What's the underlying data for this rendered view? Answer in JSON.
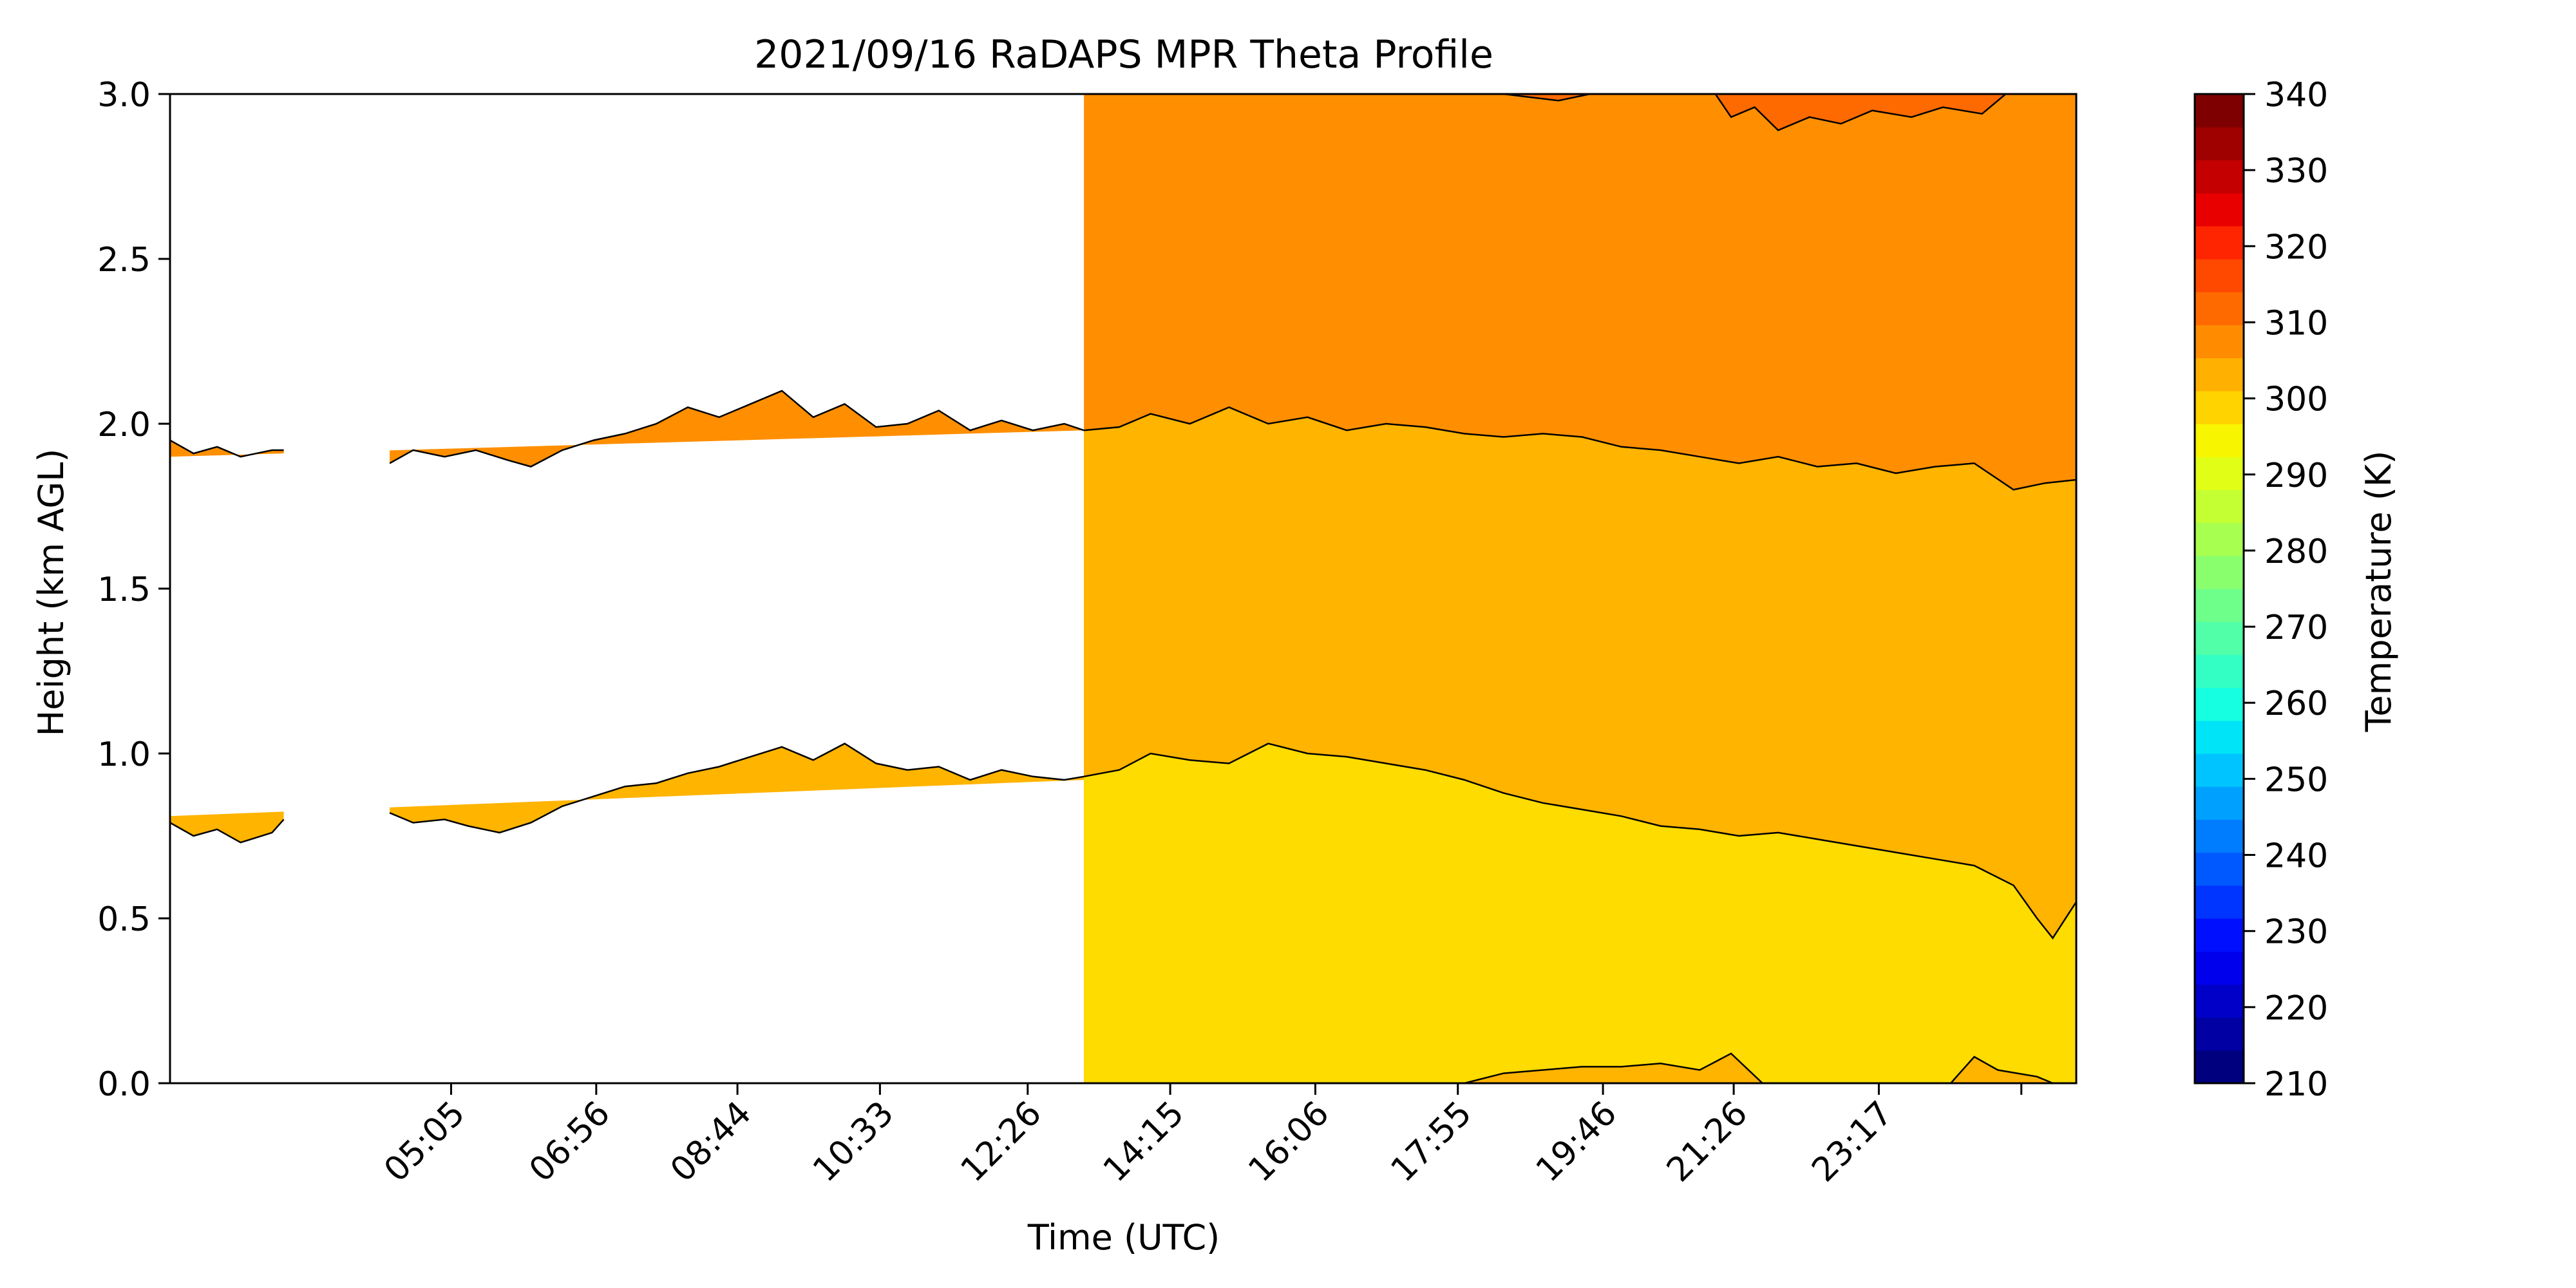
{
  "chart_data": {
    "type": "heatmap",
    "title": "2021/09/16 RaDAPS MPR Theta Profile",
    "xlabel": "Time (UTC)",
    "ylabel": "Height (km AGL)",
    "ylim": [
      0,
      3.0
    ],
    "x_range_hours": [
      1.5,
      25.8
    ],
    "x_ticks": [
      {
        "label": "05:05",
        "hour": 5.0833
      },
      {
        "label": "06:56",
        "hour": 6.9333
      },
      {
        "label": "08:44",
        "hour": 8.7333
      },
      {
        "label": "10:33",
        "hour": 10.55
      },
      {
        "label": "12:26",
        "hour": 12.4333
      },
      {
        "label": "14:15",
        "hour": 14.25
      },
      {
        "label": "16:06",
        "hour": 16.1
      },
      {
        "label": "17:55",
        "hour": 17.9167
      },
      {
        "label": "19:46",
        "hour": 19.7667
      },
      {
        "label": "21:26",
        "hour": 21.4333
      },
      {
        "label": "23:17",
        "hour": 23.2833
      },
      {
        "label": "",
        "hour": 25.1
      }
    ],
    "y_ticks": [
      "0.0",
      "0.5",
      "1.0",
      "1.5",
      "2.0",
      "2.5",
      "3.0"
    ],
    "y_tick_values": [
      0,
      0.5,
      1.0,
      1.5,
      2.0,
      2.5,
      3.0
    ],
    "colorbar": {
      "label": "Temperature (K)",
      "min": 210,
      "max": 340,
      "tick_values": [
        210,
        220,
        230,
        240,
        250,
        260,
        270,
        280,
        290,
        300,
        310,
        320,
        330,
        340
      ],
      "tick_labels": [
        "210",
        "220",
        "230",
        "240",
        "250",
        "260",
        "270",
        "280",
        "290",
        "300",
        "310",
        "320",
        "330",
        "340"
      ],
      "colors": [
        "#00007f",
        "#0000a3",
        "#0000c8",
        "#0000ed",
        "#0010ff",
        "#0034ff",
        "#0058ff",
        "#007cff",
        "#00a0ff",
        "#00c4ff",
        "#00e4f8",
        "#16ffe1",
        "#33ffc4",
        "#50ffa7",
        "#6dff8a",
        "#8aff6d",
        "#a7ff50",
        "#c4ff33",
        "#e1ff16",
        "#f8f500",
        "#ffd300",
        "#ffb000",
        "#ff8c00",
        "#ff6a00",
        "#ff4800",
        "#ff2500",
        "#e80000",
        "#c40000",
        "#9f0000",
        "#7f0000"
      ]
    },
    "bands": [
      {
        "name": "295-300 K",
        "color": "#ffdc00"
      },
      {
        "name": "300-305 K",
        "color": "#ffb400"
      },
      {
        "name": "305-310 K",
        "color": "#ff8f00"
      },
      {
        "name": "310-315 K",
        "color": "#ff6a00"
      }
    ],
    "contours": {
      "c300": [
        [
          13.15,
          0.93
        ],
        [
          13.6,
          0.95
        ],
        [
          14.0,
          1.0
        ],
        [
          14.5,
          0.98
        ],
        [
          15.0,
          0.97
        ],
        [
          15.5,
          1.03
        ],
        [
          16.0,
          1.0
        ],
        [
          16.5,
          0.99
        ],
        [
          17.0,
          0.97
        ],
        [
          17.5,
          0.95
        ],
        [
          18.0,
          0.92
        ],
        [
          18.5,
          0.88
        ],
        [
          19.0,
          0.85
        ],
        [
          19.5,
          0.83
        ],
        [
          20.0,
          0.81
        ],
        [
          20.5,
          0.78
        ],
        [
          21.0,
          0.77
        ],
        [
          21.5,
          0.75
        ],
        [
          22.0,
          0.76
        ],
        [
          22.5,
          0.74
        ],
        [
          23.0,
          0.72
        ],
        [
          23.5,
          0.7
        ],
        [
          24.0,
          0.68
        ],
        [
          24.5,
          0.66
        ],
        [
          25.0,
          0.6
        ],
        [
          25.3,
          0.5
        ],
        [
          25.5,
          0.44
        ],
        [
          25.8,
          0.55
        ]
      ],
      "c305": [
        [
          13.15,
          1.98
        ],
        [
          13.6,
          1.99
        ],
        [
          14.0,
          2.03
        ],
        [
          14.5,
          2.0
        ],
        [
          15.0,
          2.05
        ],
        [
          15.5,
          2.0
        ],
        [
          16.0,
          2.02
        ],
        [
          16.5,
          1.98
        ],
        [
          17.0,
          2.0
        ],
        [
          17.5,
          1.99
        ],
        [
          18.0,
          1.97
        ],
        [
          18.5,
          1.96
        ],
        [
          19.0,
          1.97
        ],
        [
          19.5,
          1.96
        ],
        [
          20.0,
          1.93
        ],
        [
          20.5,
          1.92
        ],
        [
          21.0,
          1.9
        ],
        [
          21.5,
          1.88
        ],
        [
          22.0,
          1.9
        ],
        [
          22.5,
          1.87
        ],
        [
          23.0,
          1.88
        ],
        [
          23.5,
          1.85
        ],
        [
          24.0,
          1.87
        ],
        [
          24.5,
          1.88
        ],
        [
          25.0,
          1.8
        ],
        [
          25.4,
          1.82
        ],
        [
          25.8,
          1.83
        ]
      ],
      "c310": [
        [
          18.5,
          3.0
        ],
        [
          19.2,
          2.98
        ],
        [
          19.6,
          3.0
        ],
        [
          21.2,
          3.0
        ],
        [
          21.4,
          2.93
        ],
        [
          21.7,
          2.96
        ],
        [
          22.0,
          2.89
        ],
        [
          22.4,
          2.93
        ],
        [
          22.8,
          2.91
        ],
        [
          23.2,
          2.95
        ],
        [
          23.7,
          2.93
        ],
        [
          24.1,
          2.96
        ],
        [
          24.6,
          2.94
        ],
        [
          24.9,
          3.0
        ]
      ],
      "c295": [
        [
          18.0,
          0.0
        ],
        [
          18.5,
          0.03
        ],
        [
          19.0,
          0.04
        ],
        [
          19.5,
          0.05
        ],
        [
          20.0,
          0.05
        ],
        [
          20.5,
          0.06
        ],
        [
          21.0,
          0.04
        ],
        [
          21.4,
          0.09
        ],
        [
          21.8,
          0.0
        ],
        [
          24.2,
          0.0
        ],
        [
          24.5,
          0.08
        ],
        [
          24.8,
          0.04
        ],
        [
          25.3,
          0.02
        ],
        [
          25.5,
          0.0
        ]
      ],
      "early_low_start": [
        [
          1.5,
          0.79
        ],
        [
          1.8,
          0.75
        ],
        [
          2.1,
          0.77
        ],
        [
          2.4,
          0.73
        ],
        [
          2.8,
          0.76
        ],
        [
          2.95,
          0.8
        ]
      ],
      "early_high_start": [
        [
          1.5,
          1.95
        ],
        [
          1.8,
          1.91
        ],
        [
          2.1,
          1.93
        ],
        [
          2.4,
          1.9
        ],
        [
          2.8,
          1.92
        ],
        [
          2.95,
          1.92
        ]
      ],
      "low_line": [
        [
          4.3,
          0.82
        ],
        [
          4.6,
          0.79
        ],
        [
          5.0,
          0.8
        ],
        [
          5.3,
          0.78
        ],
        [
          5.7,
          0.76
        ],
        [
          6.1,
          0.79
        ],
        [
          6.5,
          0.84
        ],
        [
          6.9,
          0.87
        ],
        [
          7.3,
          0.9
        ],
        [
          7.7,
          0.91
        ],
        [
          8.1,
          0.94
        ],
        [
          8.5,
          0.96
        ],
        [
          8.9,
          0.99
        ],
        [
          9.3,
          1.02
        ],
        [
          9.7,
          0.98
        ],
        [
          10.1,
          1.03
        ],
        [
          10.5,
          0.97
        ],
        [
          10.9,
          0.95
        ],
        [
          11.3,
          0.96
        ],
        [
          11.7,
          0.92
        ],
        [
          12.1,
          0.95
        ],
        [
          12.5,
          0.93
        ],
        [
          12.9,
          0.92
        ],
        [
          13.15,
          0.93
        ]
      ],
      "high_line": [
        [
          4.3,
          1.88
        ],
        [
          4.6,
          1.92
        ],
        [
          5.0,
          1.9
        ],
        [
          5.4,
          1.92
        ],
        [
          5.8,
          1.89
        ],
        [
          6.1,
          1.87
        ],
        [
          6.5,
          1.92
        ],
        [
          6.9,
          1.95
        ],
        [
          7.3,
          1.97
        ],
        [
          7.7,
          2.0
        ],
        [
          8.1,
          2.05
        ],
        [
          8.5,
          2.02
        ],
        [
          8.9,
          2.06
        ],
        [
          9.3,
          2.1
        ],
        [
          9.7,
          2.02
        ],
        [
          10.1,
          2.06
        ],
        [
          10.5,
          1.99
        ],
        [
          10.9,
          2.0
        ],
        [
          11.3,
          2.04
        ],
        [
          11.7,
          1.98
        ],
        [
          12.1,
          2.01
        ],
        [
          12.5,
          1.98
        ],
        [
          12.9,
          2.0
        ],
        [
          13.15,
          1.98
        ]
      ],
      "low_base": [
        [
          1.5,
          0.81
        ],
        [
          13.15,
          0.92
        ]
      ],
      "high_base": [
        [
          1.5,
          1.9
        ],
        [
          13.15,
          1.98
        ]
      ]
    }
  }
}
